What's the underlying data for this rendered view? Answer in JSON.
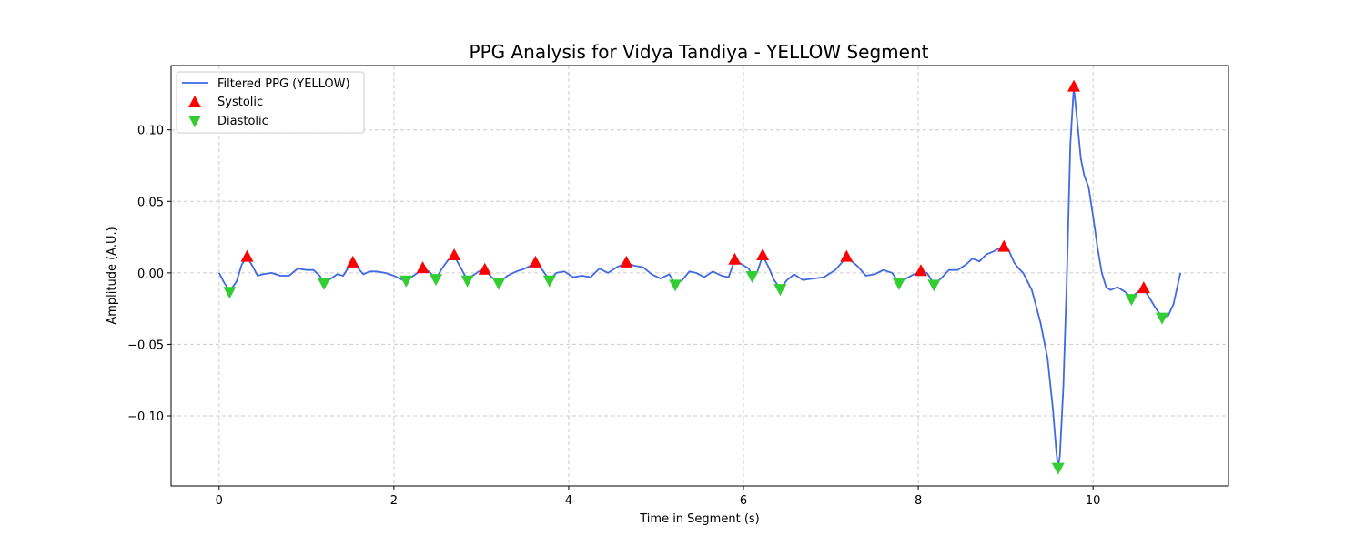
{
  "chart_data": {
    "type": "line",
    "title": "PPG Analysis for Vidya Tandiya - YELLOW Segment",
    "xlabel": "Time in Segment (s)",
    "ylabel": "Amplitude (A.U.)",
    "xlim": [
      -0.55,
      11.55
    ],
    "ylim": [
      -0.149,
      0.145
    ],
    "xticks": [
      0,
      2,
      4,
      6,
      8,
      10
    ],
    "xtick_labels": [
      "0",
      "2",
      "4",
      "6",
      "8",
      "10"
    ],
    "yticks": [
      -0.1,
      -0.05,
      0.0,
      0.05,
      0.1
    ],
    "ytick_labels": [
      "−0.10",
      "−0.05",
      "0.00",
      "0.05",
      "0.10"
    ],
    "grid": true,
    "legend_position": "top-left",
    "series": [
      {
        "name": "Filtered PPG (YELLOW)",
        "kind": "line",
        "color": "#4169e1",
        "x": [
          0.0,
          0.05,
          0.12,
          0.2,
          0.26,
          0.32,
          0.38,
          0.44,
          0.5,
          0.6,
          0.7,
          0.8,
          0.9,
          1.0,
          1.08,
          1.15,
          1.2,
          1.28,
          1.35,
          1.42,
          1.48,
          1.53,
          1.58,
          1.65,
          1.72,
          1.8,
          1.9,
          2.0,
          2.1,
          2.14,
          2.2,
          2.27,
          2.33,
          2.4,
          2.48,
          2.55,
          2.62,
          2.69,
          2.76,
          2.84,
          2.9,
          2.97,
          3.04,
          3.12,
          3.2,
          3.3,
          3.4,
          3.5,
          3.62,
          3.7,
          3.78,
          3.86,
          3.95,
          4.05,
          4.15,
          4.25,
          4.35,
          4.45,
          4.55,
          4.66,
          4.75,
          4.85,
          4.95,
          5.05,
          5.15,
          5.22,
          5.3,
          5.38,
          5.46,
          5.55,
          5.65,
          5.75,
          5.83,
          5.9,
          5.98,
          6.06,
          6.1,
          6.16,
          6.22,
          6.28,
          6.35,
          6.42,
          6.5,
          6.58,
          6.68,
          6.8,
          6.92,
          7.05,
          7.18,
          7.3,
          7.4,
          7.5,
          7.6,
          7.7,
          7.78,
          7.86,
          7.95,
          8.03,
          8.1,
          8.18,
          8.26,
          8.35,
          8.45,
          8.55,
          8.62,
          8.7,
          8.78,
          8.86,
          8.92,
          8.98,
          9.04,
          9.1,
          9.15,
          9.2,
          9.3,
          9.4,
          9.48,
          9.54,
          9.58,
          9.6,
          9.62,
          9.66,
          9.7,
          9.74,
          9.78,
          9.82,
          9.86,
          9.9,
          9.95,
          10.0,
          10.05,
          10.1,
          10.15,
          10.2,
          10.28,
          10.36,
          10.44,
          10.52,
          10.58,
          10.65,
          10.72,
          10.79,
          10.86,
          10.92,
          11.0
        ],
        "y": [
          0.0,
          -0.006,
          -0.013,
          -0.006,
          0.006,
          0.011,
          0.005,
          -0.002,
          -0.001,
          0.0,
          -0.002,
          -0.002,
          0.003,
          0.002,
          0.002,
          -0.002,
          -0.007,
          -0.004,
          -0.001,
          -0.002,
          0.004,
          0.007,
          0.004,
          -0.001,
          0.001,
          0.001,
          0.0,
          -0.002,
          -0.005,
          -0.005,
          -0.003,
          0.0,
          0.003,
          0.001,
          -0.004,
          0.003,
          0.009,
          0.012,
          0.004,
          -0.005,
          -0.002,
          0.001,
          0.002,
          -0.003,
          -0.007,
          -0.002,
          0.001,
          0.003,
          0.007,
          0.002,
          -0.005,
          0.0,
          0.001,
          -0.003,
          -0.002,
          -0.003,
          0.003,
          0.0,
          0.004,
          0.007,
          0.005,
          0.004,
          -0.001,
          -0.004,
          -0.001,
          -0.008,
          -0.005,
          0.001,
          0.0,
          -0.003,
          0.001,
          -0.002,
          -0.003,
          0.009,
          0.006,
          0.003,
          -0.002,
          0.001,
          0.012,
          0.005,
          -0.005,
          -0.011,
          -0.005,
          -0.001,
          -0.005,
          -0.004,
          -0.003,
          0.002,
          0.011,
          0.005,
          -0.002,
          -0.001,
          0.002,
          0.0,
          -0.007,
          -0.004,
          -0.001,
          0.001,
          0.0,
          -0.008,
          -0.004,
          0.002,
          0.002,
          0.006,
          0.01,
          0.008,
          0.013,
          0.015,
          0.017,
          0.018,
          0.015,
          0.007,
          0.003,
          0.0,
          -0.012,
          -0.035,
          -0.06,
          -0.095,
          -0.125,
          -0.136,
          -0.128,
          -0.08,
          -0.005,
          0.09,
          0.13,
          0.105,
          0.08,
          0.068,
          0.06,
          0.04,
          0.018,
          0.0,
          -0.01,
          -0.012,
          -0.01,
          -0.013,
          -0.017,
          -0.013,
          -0.011,
          -0.018,
          -0.025,
          -0.031,
          -0.03,
          -0.022,
          0.0
        ]
      },
      {
        "name": "Systolic",
        "kind": "marker",
        "marker": "triangle-up",
        "color": "#ff0000",
        "x": [
          0.32,
          1.53,
          2.33,
          2.69,
          3.04,
          3.62,
          4.66,
          5.9,
          6.22,
          7.18,
          8.03,
          8.98,
          9.78,
          10.58
        ],
        "y": [
          0.011,
          0.007,
          0.003,
          0.012,
          0.002,
          0.007,
          0.007,
          0.009,
          0.012,
          0.011,
          0.001,
          0.018,
          0.13,
          -0.011
        ]
      },
      {
        "name": "Diastolic",
        "kind": "marker",
        "marker": "triangle-down",
        "color": "#32cd32",
        "x": [
          0.12,
          1.2,
          2.14,
          2.48,
          2.84,
          3.2,
          3.78,
          5.22,
          6.1,
          6.42,
          7.78,
          8.18,
          9.6,
          10.44,
          10.79
        ],
        "y": [
          -0.013,
          -0.007,
          -0.005,
          -0.004,
          -0.005,
          -0.007,
          -0.005,
          -0.008,
          -0.002,
          -0.011,
          -0.007,
          -0.008,
          -0.136,
          -0.018,
          -0.031
        ]
      }
    ]
  }
}
